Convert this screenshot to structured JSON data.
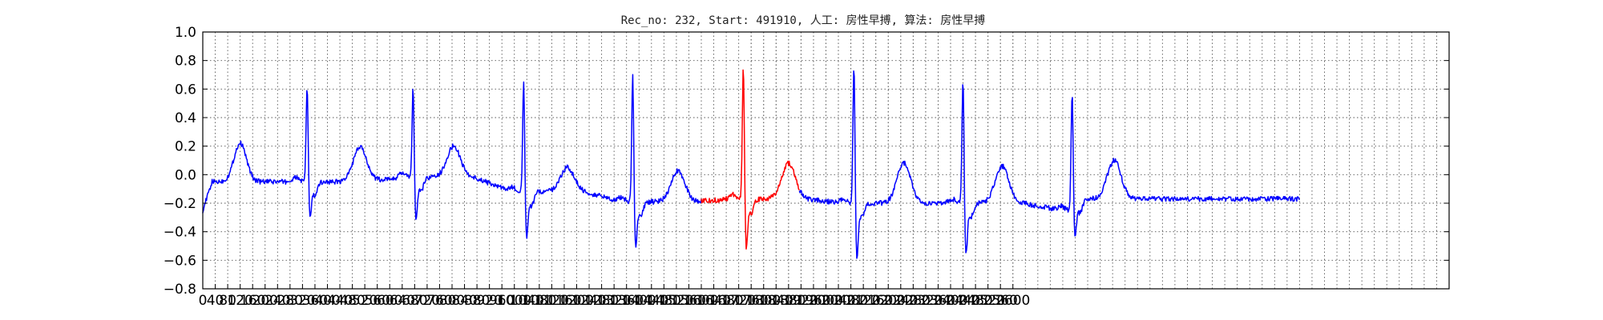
{
  "chart_data": {
    "type": "line",
    "title": "Rec_no: 232, Start: 491910, 人工: 房性早搏, 算法: 房性早搏",
    "xlabel": "",
    "ylabel": "",
    "xlim": [
      0,
      4000
    ],
    "ylim": [
      -0.8,
      1.0
    ],
    "grid": true,
    "yticks": [
      "1.0",
      "0.8",
      "0.6",
      "0.4",
      "0.2",
      "0.0",
      "−0.2",
      "−0.4",
      "−0.6",
      "−0.8"
    ],
    "ytick_values": [
      1.0,
      0.8,
      0.6,
      0.4,
      0.2,
      0.0,
      -0.2,
      -0.4,
      -0.6,
      -0.8
    ],
    "xticks": [
      0,
      40,
      80,
      120,
      160,
      200,
      240,
      280,
      320,
      360,
      400,
      440,
      480,
      520,
      560,
      600,
      640,
      680,
      720,
      760,
      800,
      840,
      880,
      920,
      960,
      1000,
      1040,
      1080,
      1120,
      1160,
      1200,
      1240,
      1280,
      1320,
      1360,
      1400,
      1440,
      1480,
      1520,
      1560,
      1600,
      1640,
      1680,
      1720,
      1760,
      1800,
      1840,
      1880,
      1920,
      1960,
      2000,
      2040,
      2080,
      2120,
      2160,
      2200,
      2240,
      2280,
      2320,
      2360,
      2400,
      2440,
      2480,
      2520,
      2560,
      2600
    ],
    "x_range_plotted": [
      0,
      3520
    ],
    "beats": [
      {
        "r": 335,
        "peak": 0.65,
        "s": -0.34,
        "t_offset": 170,
        "t_amp": 0.24,
        "baseline": -0.05,
        "pre_t_amp": 0.27
      },
      {
        "r": 675,
        "peak": 0.64,
        "s": -0.35,
        "t_offset": 130,
        "t_amp": 0.22,
        "baseline": -0.02
      },
      {
        "r": 1030,
        "peak": 0.68,
        "s": -0.49,
        "t_offset": 140,
        "t_amp": 0.17,
        "baseline": -0.12
      },
      {
        "r": 1380,
        "peak": 0.73,
        "s": -0.55,
        "t_offset": 145,
        "t_amp": 0.22,
        "baseline": -0.19
      },
      {
        "r": 1735,
        "peak": 0.8,
        "s": -0.56,
        "t_offset": 145,
        "t_amp": 0.25,
        "baseline": -0.17,
        "premature": true
      },
      {
        "r": 2090,
        "peak": 0.81,
        "s": -0.63,
        "t_offset": 160,
        "t_amp": 0.28,
        "baseline": -0.2
      },
      {
        "r": 2440,
        "peak": 0.72,
        "s": -0.61,
        "t_offset": 125,
        "t_amp": 0.26,
        "baseline": -0.2
      },
      {
        "r": 2790,
        "peak": 0.57,
        "s": -0.57,
        "t_offset": 135,
        "t_amp": 0.27,
        "baseline": -0.25
      }
    ],
    "highlight_x_range": [
      1600,
      1915
    ],
    "series": [
      {
        "color": "#0000ff",
        "segment": "normal"
      },
      {
        "color": "#ff0000",
        "segment": "highlighted"
      }
    ]
  }
}
